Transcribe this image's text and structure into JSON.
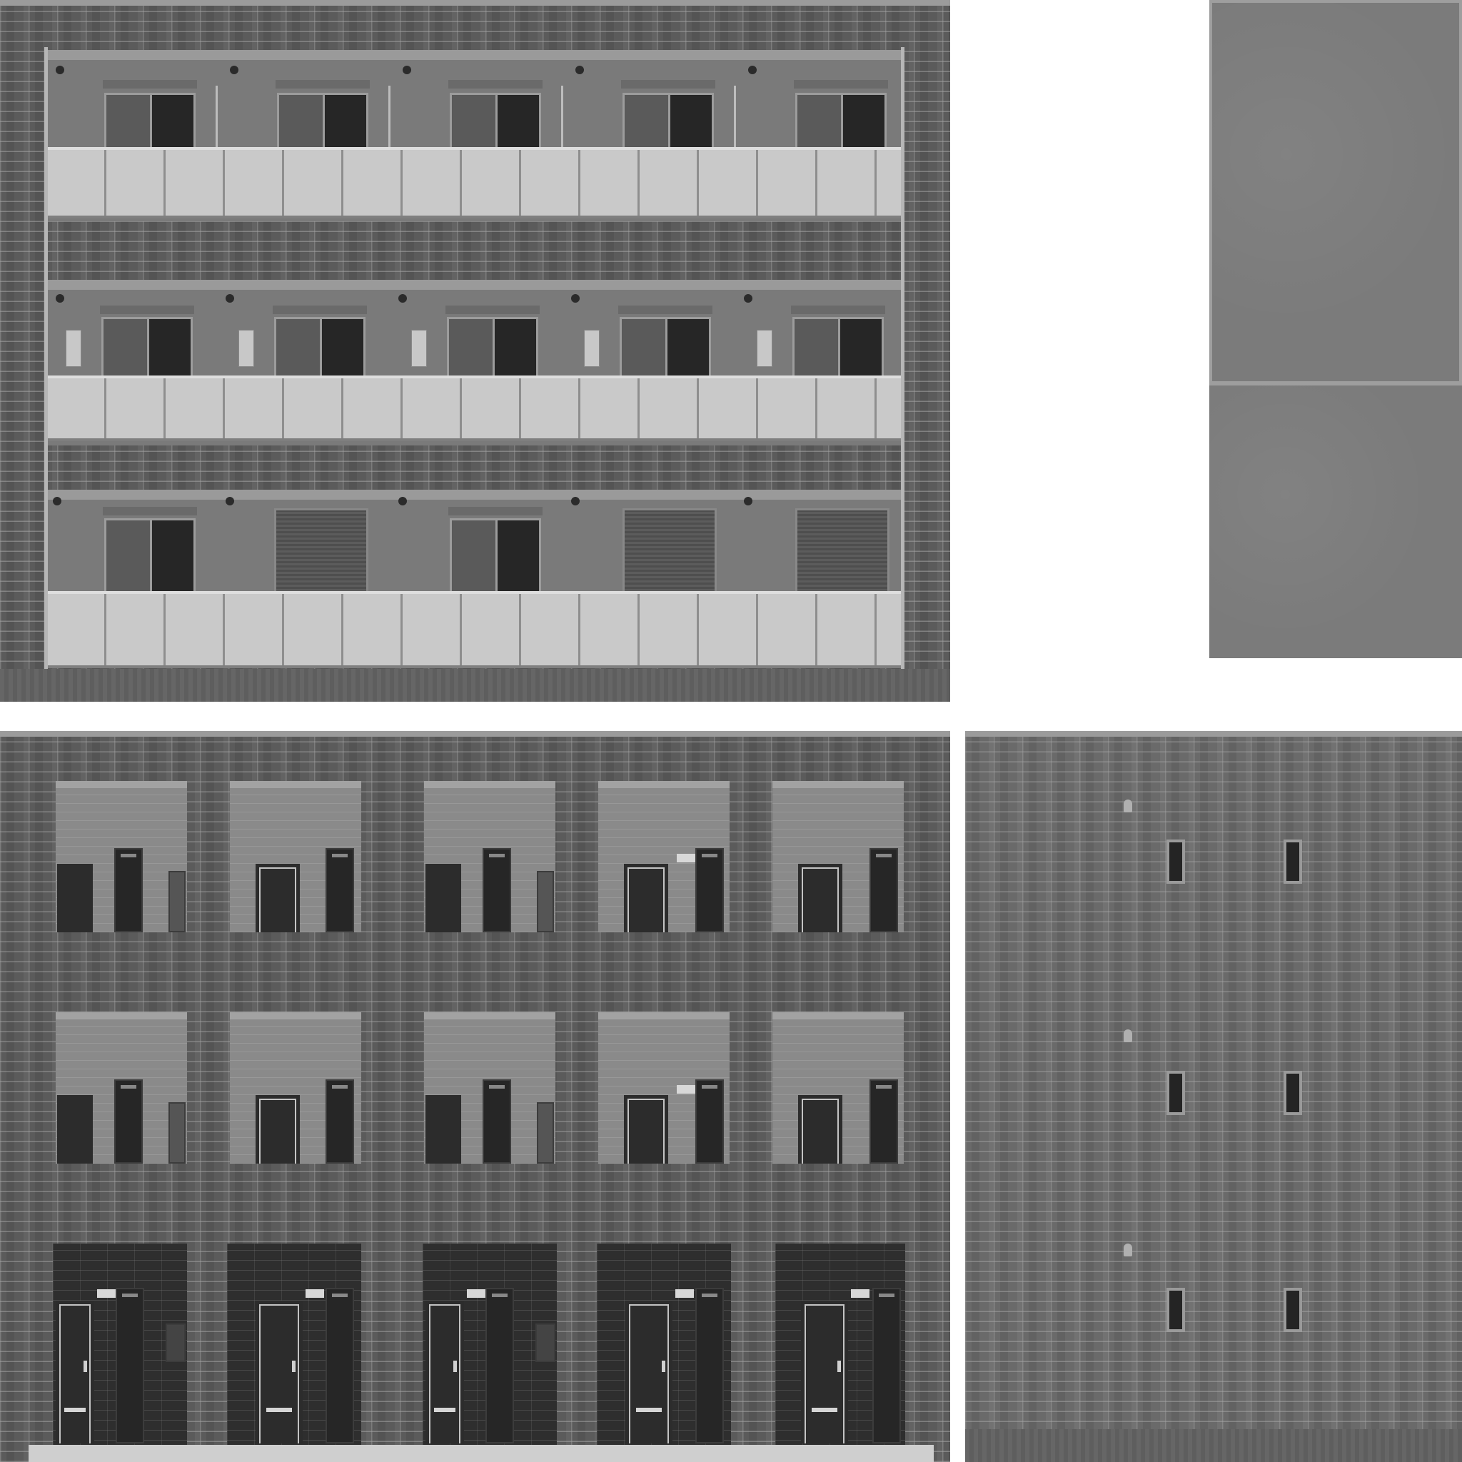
{
  "image": {
    "kind": "building facade texture atlas",
    "palette": {
      "brick": "#5b5b5b",
      "mortar": "#a5a5a5",
      "railing": "#c9c9c9",
      "door": "#2c2c2c",
      "roof": "#7b7b7b",
      "background": "#ffffff"
    },
    "panels": [
      {
        "name": "balcony-facade",
        "floors": 3,
        "bays_per_floor": 5
      },
      {
        "name": "roof-texture",
        "sections": 2
      },
      {
        "name": "corridor-facade",
        "floors": 3,
        "bays_per_floor": 5
      },
      {
        "name": "side-wall",
        "floors": 3,
        "windows_per_floor": 2
      }
    ]
  }
}
